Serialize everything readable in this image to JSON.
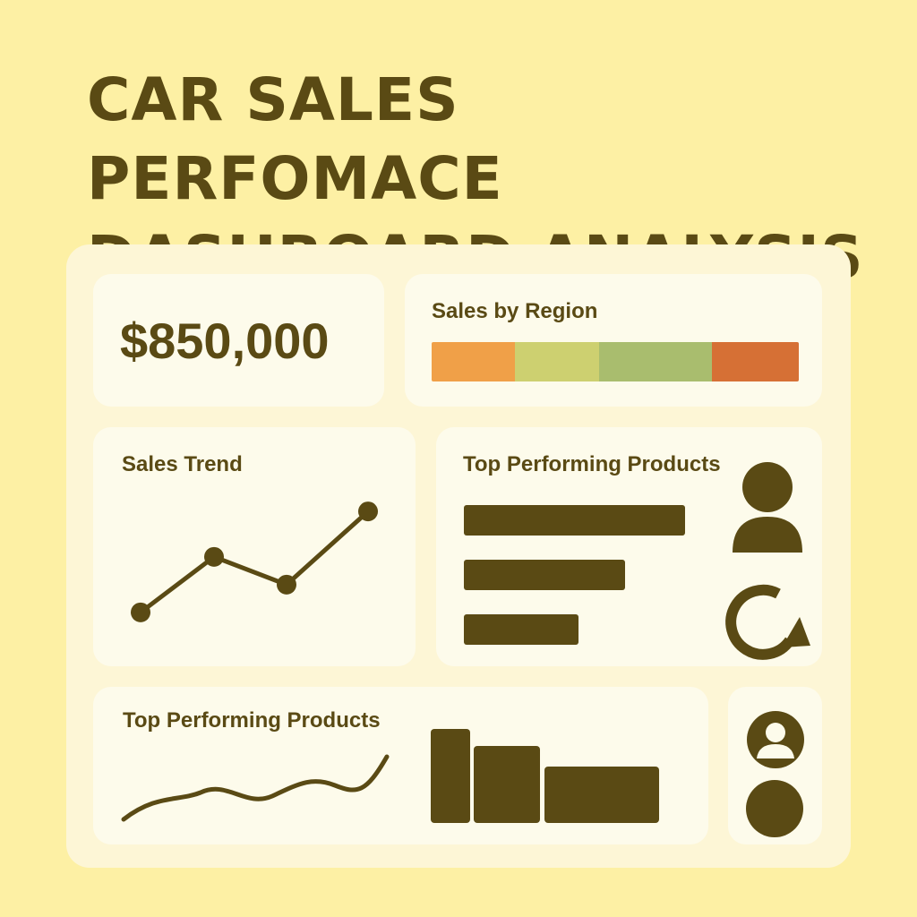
{
  "title_line1": "CAR SALES PERFOMACE",
  "title_line2": "DASHBOARD ANALYSIS",
  "colors": {
    "background": "#fdf0a4",
    "panel": "#fdf6d6",
    "card": "#fdfbeb",
    "ink": "#5a4a14"
  },
  "kpi": {
    "value": "$850,000"
  },
  "region": {
    "title": "Sales by Region",
    "segments": [
      {
        "color": "#f0a048",
        "share": 0.228
      },
      {
        "color": "#cdd070",
        "share": 0.229
      },
      {
        "color": "#a9bd6e",
        "share": 0.307
      },
      {
        "color": "#d67035",
        "share": 0.236
      }
    ]
  },
  "trend": {
    "title": "Sales Trend",
    "points": [
      1,
      3.2,
      2.1,
      5
    ]
  },
  "top_products": {
    "title": "Top Performing Products",
    "bars": [
      1.0,
      0.73,
      0.52
    ],
    "icons": [
      "user-icon",
      "refresh-icon"
    ]
  },
  "bottom_products": {
    "title": "Top Performing  Products",
    "bars": [
      1.0,
      0.82,
      0.6
    ]
  },
  "side_icons": [
    "user-circle-icon",
    "circle-icon"
  ]
}
